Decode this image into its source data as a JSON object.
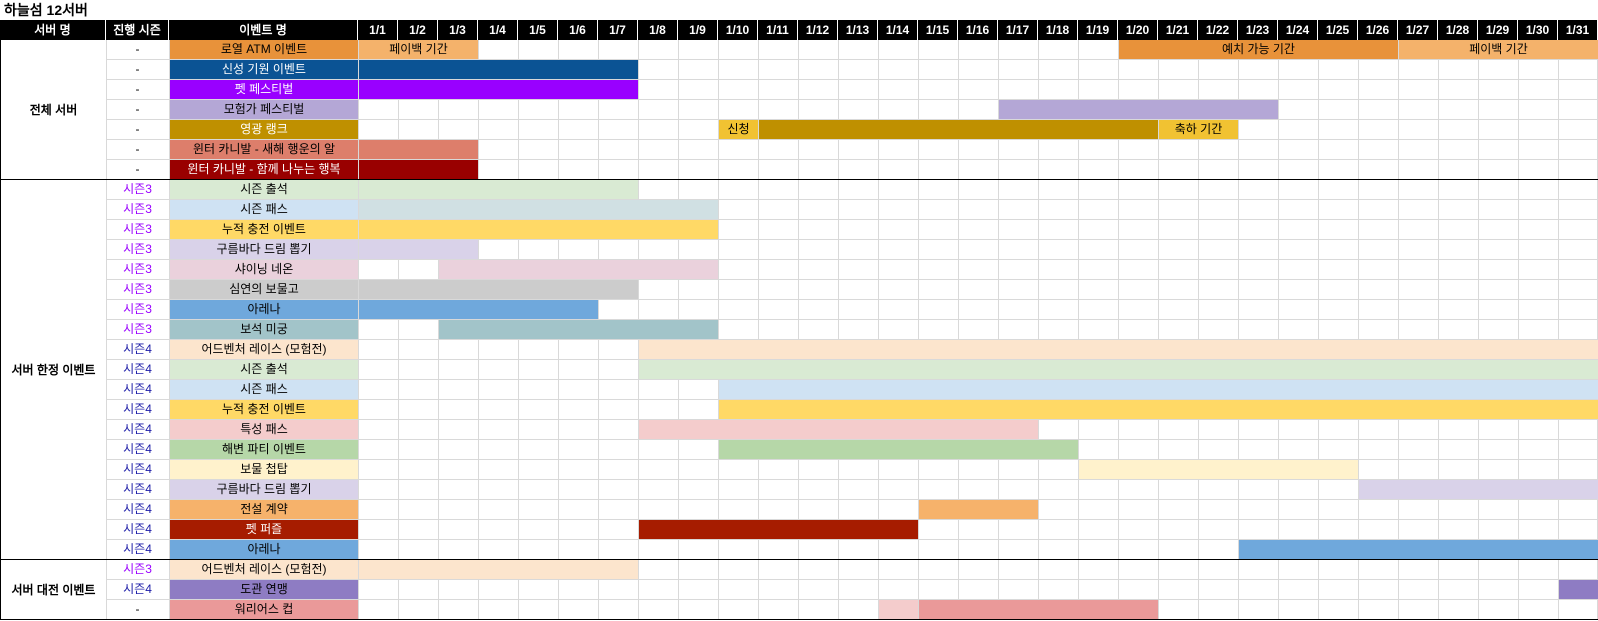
{
  "title": "하늘섬 12서버",
  "headers": {
    "server": "서버 명",
    "season": "진행 시즌",
    "event": "이벤트 명",
    "dates": [
      "1/1",
      "1/2",
      "1/3",
      "1/4",
      "1/5",
      "1/6",
      "1/7",
      "1/8",
      "1/9",
      "1/10",
      "1/11",
      "1/12",
      "1/13",
      "1/14",
      "1/15",
      "1/16",
      "1/17",
      "1/18",
      "1/19",
      "1/20",
      "1/21",
      "1/22",
      "1/23",
      "1/24",
      "1/25",
      "1/26",
      "1/27",
      "1/28",
      "1/29",
      "1/30",
      "1/31"
    ]
  },
  "groups": [
    {
      "label": "전체 서버",
      "start": 0,
      "count": 7
    },
    {
      "label": "서버 한정 이벤트",
      "start": 7,
      "count": 19
    },
    {
      "label": "서버 대전 이벤트",
      "start": 26,
      "count": 3
    }
  ],
  "rows": [
    {
      "season": "-",
      "season_color": "#000000",
      "name": "로열 ATM 이벤트",
      "color": "#e8923a",
      "text_color": "#000000",
      "bars": [
        {
          "from": 1,
          "to": 3,
          "color": "#f4b26b",
          "label": "페이백 기간"
        },
        {
          "from": 20,
          "to": 26,
          "color": "#e8923a",
          "label": "예치 가능 기간"
        },
        {
          "from": 27,
          "to": 31,
          "color": "#f4b26b",
          "label": "페이백 기간"
        }
      ]
    },
    {
      "season": "-",
      "season_color": "#000000",
      "name": "신성 기원 이벤트",
      "color": "#0b5394",
      "text_color": "#ffffff",
      "bars": [
        {
          "from": 1,
          "to": 7,
          "color": "#0b5394",
          "label": ""
        }
      ]
    },
    {
      "season": "-",
      "season_color": "#000000",
      "name": "펫 페스티벌",
      "color": "#9900ff",
      "text_color": "#ffffff",
      "bars": [
        {
          "from": 1,
          "to": 7,
          "color": "#9900ff",
          "label": ""
        }
      ]
    },
    {
      "season": "-",
      "season_color": "#000000",
      "name": "모험가 페스티벌",
      "color": "#b4a7d6",
      "text_color": "#000000",
      "bars": [
        {
          "from": 17,
          "to": 23,
          "color": "#b4a7d6",
          "label": ""
        }
      ]
    },
    {
      "season": "-",
      "season_color": "#000000",
      "name": "영광 랭크",
      "color": "#bf9000",
      "text_color": "#ffffff",
      "bars": [
        {
          "from": 10,
          "to": 10,
          "color": "#f1c232",
          "label": "신청"
        },
        {
          "from": 11,
          "to": 20,
          "color": "#bf9000",
          "label": ""
        },
        {
          "from": 21,
          "to": 22,
          "color": "#f1c232",
          "label": "축하 기간"
        }
      ]
    },
    {
      "season": "-",
      "season_color": "#000000",
      "name": "윈터 카니발 - 새해 행운의 알",
      "color": "#dd7e6b",
      "text_color": "#000000",
      "bars": [
        {
          "from": 1,
          "to": 3,
          "color": "#dd7e6b",
          "label": ""
        }
      ]
    },
    {
      "season": "-",
      "season_color": "#000000",
      "name": "윈터 카니발 - 함께 나누는 행복",
      "color": "#990000",
      "text_color": "#ffffff",
      "bars": [
        {
          "from": 1,
          "to": 3,
          "color": "#990000",
          "label": ""
        }
      ]
    },
    {
      "season": "시즌3",
      "season_color": "#9900ff",
      "name": "시즌 출석",
      "color": "#d9ead3",
      "text_color": "#000000",
      "bars": [
        {
          "from": 1,
          "to": 7,
          "color": "#d9ead3",
          "label": ""
        }
      ]
    },
    {
      "season": "시즌3",
      "season_color": "#9900ff",
      "name": "시즌 패스",
      "color": "#cfe2f3",
      "text_color": "#000000",
      "bars": [
        {
          "from": 1,
          "to": 9,
          "color": "#d0e0e3",
          "label": ""
        }
      ]
    },
    {
      "season": "시즌3",
      "season_color": "#9900ff",
      "name": "누적 충전 이벤트",
      "color": "#ffd966",
      "text_color": "#000000",
      "bars": [
        {
          "from": 1,
          "to": 9,
          "color": "#ffd966",
          "label": ""
        }
      ]
    },
    {
      "season": "시즌3",
      "season_color": "#9900ff",
      "name": "구름바다 드림 뽑기",
      "color": "#d9d2e9",
      "text_color": "#000000",
      "bars": [
        {
          "from": 1,
          "to": 3,
          "color": "#d9d2e9",
          "label": ""
        }
      ]
    },
    {
      "season": "시즌3",
      "season_color": "#9900ff",
      "name": "샤이닝 네온",
      "color": "#ead1dc",
      "text_color": "#000000",
      "bars": [
        {
          "from": 3,
          "to": 9,
          "color": "#ead1dc",
          "label": ""
        }
      ]
    },
    {
      "season": "시즌3",
      "season_color": "#9900ff",
      "name": "심연의 보물고",
      "color": "#cccccc",
      "text_color": "#000000",
      "bars": [
        {
          "from": 1,
          "to": 7,
          "color": "#cccccc",
          "label": ""
        }
      ]
    },
    {
      "season": "시즌3",
      "season_color": "#9900ff",
      "name": "아레나",
      "color": "#6fa8dc",
      "text_color": "#000000",
      "bars": [
        {
          "from": 1,
          "to": 6,
          "color": "#6fa8dc",
          "label": ""
        }
      ]
    },
    {
      "season": "시즌3",
      "season_color": "#9900ff",
      "name": "보석 미궁",
      "color": "#a2c4c9",
      "text_color": "#000000",
      "bars": [
        {
          "from": 3,
          "to": 9,
          "color": "#a2c4c9",
          "label": ""
        }
      ]
    },
    {
      "season": "시즌4",
      "season_color": "#1c1ca8",
      "name": "어드벤처 레이스 (모험전)",
      "color": "#fce5cd",
      "text_color": "#000000",
      "bars": [
        {
          "from": 8,
          "to": 31,
          "color": "#fce5cd",
          "label": ""
        }
      ]
    },
    {
      "season": "시즌4",
      "season_color": "#1c1ca8",
      "name": "시즌 출석",
      "color": "#d9ead3",
      "text_color": "#000000",
      "bars": [
        {
          "from": 8,
          "to": 31,
          "color": "#d9ead3",
          "label": ""
        }
      ]
    },
    {
      "season": "시즌4",
      "season_color": "#1c1ca8",
      "name": "시즌 패스",
      "color": "#cfe2f3",
      "text_color": "#000000",
      "bars": [
        {
          "from": 10,
          "to": 31,
          "color": "#cfe2f3",
          "label": ""
        }
      ]
    },
    {
      "season": "시즌4",
      "season_color": "#1c1ca8",
      "name": "누적 충전 이벤트",
      "color": "#ffd966",
      "text_color": "#000000",
      "bars": [
        {
          "from": 10,
          "to": 31,
          "color": "#ffd966",
          "label": ""
        }
      ]
    },
    {
      "season": "시즌4",
      "season_color": "#1c1ca8",
      "name": "특성 패스",
      "color": "#f4cccc",
      "text_color": "#000000",
      "bars": [
        {
          "from": 8,
          "to": 17,
          "color": "#f4cccc",
          "label": ""
        }
      ]
    },
    {
      "season": "시즌4",
      "season_color": "#1c1ca8",
      "name": "해변 파티 이벤트",
      "color": "#b6d7a8",
      "text_color": "#000000",
      "bars": [
        {
          "from": 10,
          "to": 18,
          "color": "#b6d7a8",
          "label": ""
        }
      ]
    },
    {
      "season": "시즌4",
      "season_color": "#1c1ca8",
      "name": "보물 첩탑",
      "color": "#fff2cc",
      "text_color": "#000000",
      "bars": [
        {
          "from": 19,
          "to": 25,
          "color": "#fff2cc",
          "label": ""
        }
      ]
    },
    {
      "season": "시즌4",
      "season_color": "#1c1ca8",
      "name": "구름바다 드림 뽑기",
      "color": "#d9d2e9",
      "text_color": "#000000",
      "bars": [
        {
          "from": 26,
          "to": 31,
          "color": "#d9d2e9",
          "label": ""
        }
      ]
    },
    {
      "season": "시즌4",
      "season_color": "#1c1ca8",
      "name": "전설 계약",
      "color": "#f6b26b",
      "text_color": "#000000",
      "bars": [
        {
          "from": 15,
          "to": 17,
          "color": "#f6b26b",
          "label": ""
        }
      ]
    },
    {
      "season": "시즌4",
      "season_color": "#1c1ca8",
      "name": "펫 퍼즐",
      "color": "#a61c00",
      "text_color": "#ffffff",
      "bars": [
        {
          "from": 8,
          "to": 14,
          "color": "#a61c00",
          "label": ""
        }
      ]
    },
    {
      "season": "시즌4",
      "season_color": "#1c1ca8",
      "name": "아레나",
      "color": "#6fa8dc",
      "text_color": "#000000",
      "bars": [
        {
          "from": 23,
          "to": 31,
          "color": "#6fa8dc",
          "label": ""
        }
      ]
    },
    {
      "season": "시즌3",
      "season_color": "#9900ff",
      "name": "어드벤처 레이스 (모험전)",
      "color": "#fce5cd",
      "text_color": "#000000",
      "bars": [
        {
          "from": 1,
          "to": 7,
          "color": "#fce5cd",
          "label": ""
        }
      ]
    },
    {
      "season": "시즌4",
      "season_color": "#1c1ca8",
      "name": "도관 연맹",
      "color": "#8e7cc3",
      "text_color": "#000000",
      "bars": [
        {
          "from": 31,
          "to": 31,
          "color": "#8e7cc3",
          "label": ""
        }
      ]
    },
    {
      "season": "-",
      "season_color": "#000000",
      "name": "워리어스 컵",
      "color": "#ea9999",
      "text_color": "#000000",
      "bars": [
        {
          "from": 14,
          "to": 14,
          "color": "#f4cccc",
          "label": ""
        },
        {
          "from": 15,
          "to": 20,
          "color": "#ea9999",
          "label": ""
        }
      ]
    }
  ]
}
